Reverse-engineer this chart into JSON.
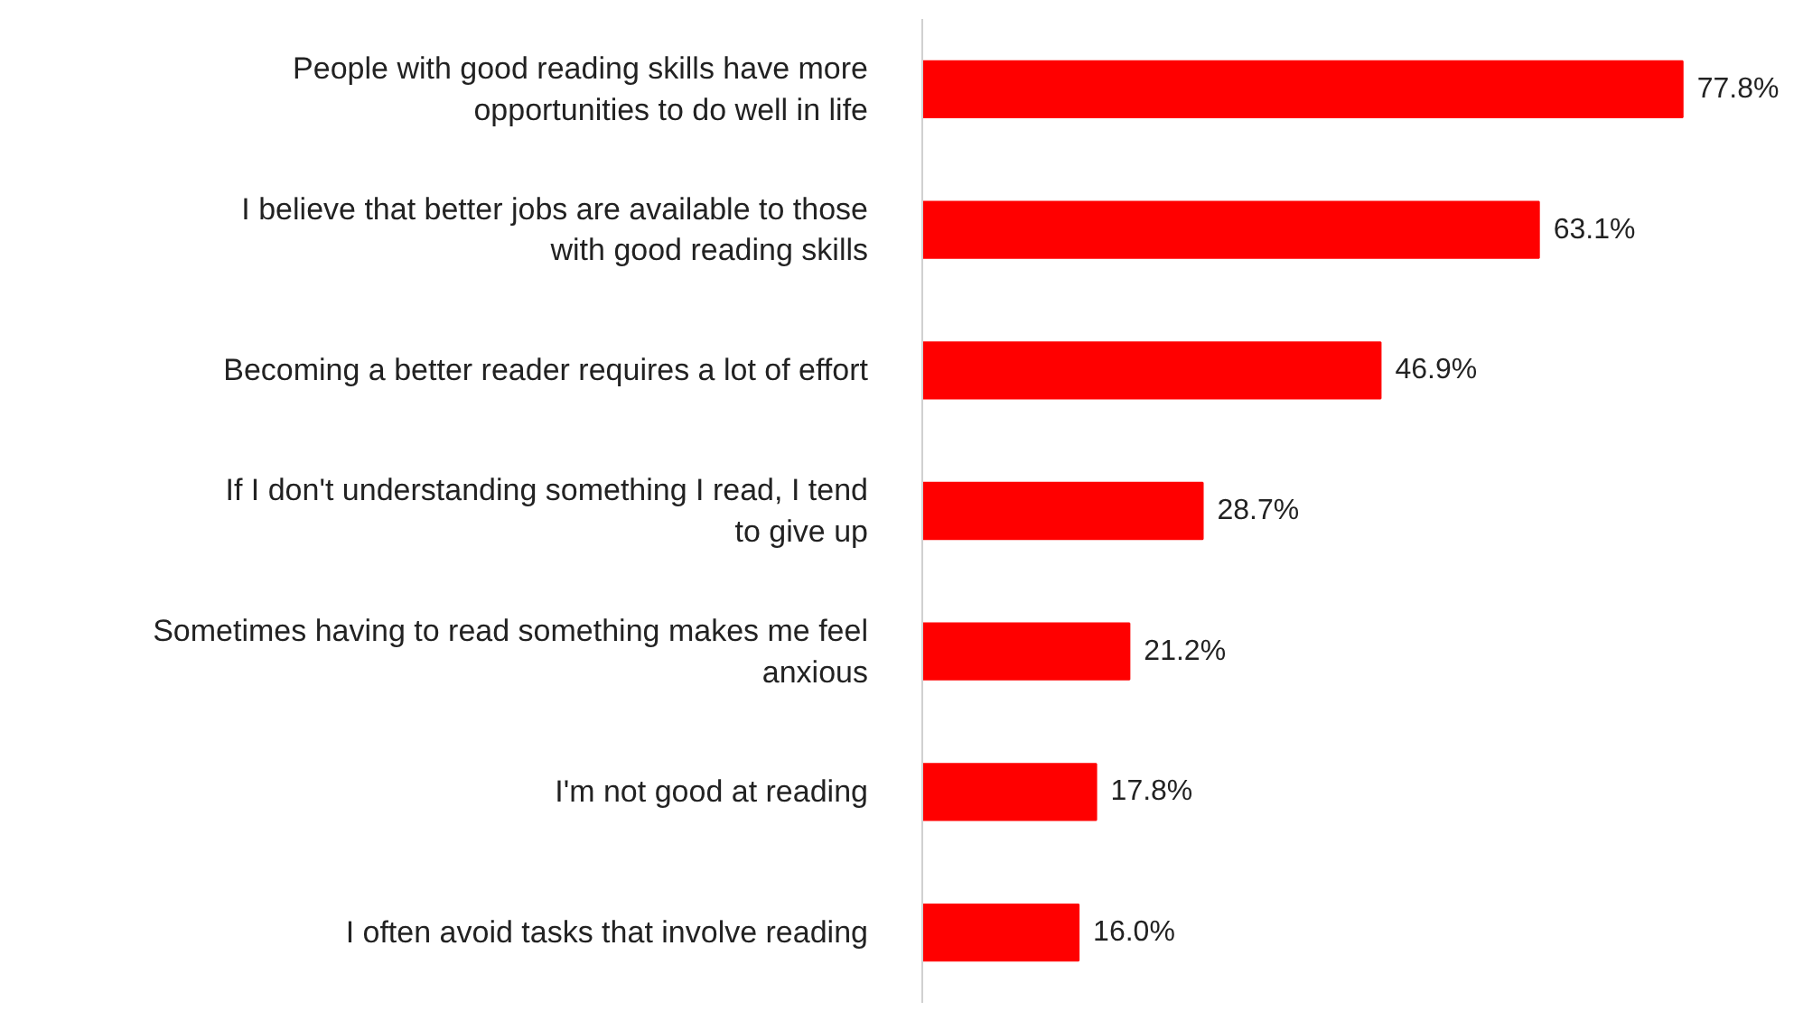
{
  "chart_data": {
    "type": "bar",
    "orientation": "horizontal",
    "categories": [
      "People with good reading skills have more opportunities to do well in life",
      "I believe that better jobs are available to those with good reading skills",
      "Becoming a better reader requires a lot of effort",
      "If I don't understanding something I read, I tend to give up",
      "Sometimes having to read something makes me feel anxious",
      "I'm not good at reading",
      "I often avoid tasks that involve reading"
    ],
    "values": [
      77.8,
      63.1,
      46.9,
      28.7,
      21.2,
      17.8,
      16.0
    ],
    "value_labels": [
      "77.8%",
      "63.1%",
      "46.9%",
      "28.7%",
      "21.2%",
      "17.8%",
      "16.0%"
    ],
    "color": "#ff0000",
    "tick_labels": "y",
    "grid": false
  }
}
